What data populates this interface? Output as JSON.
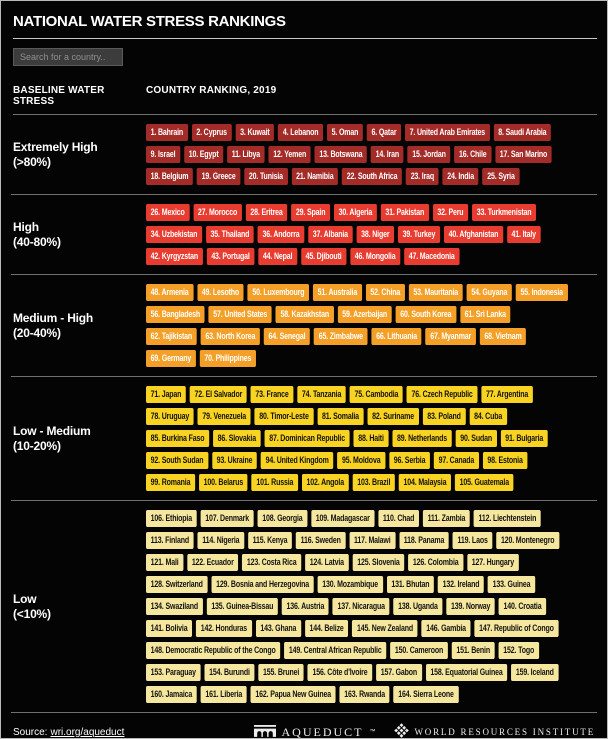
{
  "header": {
    "title": "NATIONAL WATER STRESS RANKINGS",
    "search_placeholder": "Search for a country.."
  },
  "footer": {
    "source_prefix": "Source:",
    "source_link": "wri.org/aqueduct",
    "aqueduct_label": "AQUEDUCT",
    "aqueduct_tm": "™",
    "wri_label": "WORLD RESOURCES INSTITUTE"
  },
  "chart_data": {
    "type": "table",
    "title": "National Water Stress Rankings",
    "columns": [
      "BASELINE WATER STRESS",
      "COUNTRY RANKING, 2019"
    ],
    "year": "2019",
    "groups": [
      {
        "id": "extremely-high",
        "label": "Extremely High",
        "range": "(>80%)",
        "badge_color": "#A32C28",
        "text_color": "#FFFFFF",
        "rows": [
          [
            "1. Bahrain",
            "2. Cyprus",
            "3. Kuwait",
            "4. Lebanon",
            "5. Oman",
            "6. Qatar",
            "7. United Arab Emirates",
            "8. Saudi Arabia"
          ],
          [
            "9. Israel",
            "10. Egypt",
            "11. Libya",
            "12. Yemen",
            "13. Botswana",
            "14. Iran",
            "15. Jordan",
            "16. Chile",
            "17. San Marino"
          ],
          [
            "18. Belgium",
            "19. Greece",
            "20. Tunisia",
            "21. Namibia",
            "22. South Africa",
            "23. Iraq",
            "24. India",
            "25. Syria"
          ]
        ]
      },
      {
        "id": "high",
        "label": "High",
        "range": "(40-80%)",
        "badge_color": "#E83C30",
        "text_color": "#FFFFFF",
        "rows": [
          [
            "26. Mexico",
            "27. Morocco",
            "28. Eritrea",
            "29. Spain",
            "30. Algeria",
            "31. Pakistan",
            "32. Peru",
            "33. Turkmenistan"
          ],
          [
            "34. Uzbekistan",
            "35. Thailand",
            "36. Andorra",
            "37. Albania",
            "38. Niger",
            "39. Turkey",
            "40. Afghanistan",
            "41. Italy"
          ],
          [
            "42. Kyrgyzstan",
            "43. Portugal",
            "44. Nepal",
            "45. Djibouti",
            "46. Mongolia",
            "47. Macedonia"
          ]
        ]
      },
      {
        "id": "medium-high",
        "label": "Medium - High",
        "range": "(20-40%)",
        "badge_color": "#F4A028",
        "text_color": "#FFFFFF",
        "rows": [
          [
            "48. Armenia",
            "49. Lesotho",
            "50. Luxembourg",
            "51. Australia",
            "52. China",
            "53. Mauritania",
            "54. Guyana",
            "55. Indonesia"
          ],
          [
            "56. Bangladesh",
            "57. United States",
            "58. Kazakhstan",
            "59. Azerbaijan",
            "60. South Korea",
            "61. Sri Lanka"
          ],
          [
            "62. Tajikistan",
            "63. North Korea",
            "64. Senegal",
            "65. Zimbabwe",
            "66. Lithuania",
            "67. Myanmar",
            "68. Vietnam"
          ],
          [
            "69. Germany",
            "70. Philippines"
          ]
        ]
      },
      {
        "id": "low-medium",
        "label": "Low - Medium",
        "range": "(10-20%)",
        "badge_color": "#F9D322",
        "text_color": "#121212",
        "rows": [
          [
            "71. Japan",
            "72. El Salvador",
            "73. France",
            "74. Tanzania",
            "75. Cambodia",
            "76. Czech Republic",
            "77. Argentina"
          ],
          [
            "78. Uruguay",
            "79. Venezuela",
            "80. Timor-Leste",
            "81. Somalia",
            "82. Suriname",
            "83. Poland",
            "84. Cuba"
          ],
          [
            "85. Burkina Faso",
            "86. Slovakia",
            "87. Dominican Republic",
            "88. Haiti",
            "89. Netherlands",
            "90. Sudan",
            "91. Bulgaria"
          ],
          [
            "92. South Sudan",
            "93. Ukraine",
            "94. United Kingdom",
            "95. Moldova",
            "96. Serbia",
            "97. Canada",
            "98. Estonia"
          ],
          [
            "99. Romania",
            "100. Belarus",
            "101. Russia",
            "102. Angola",
            "103. Brazil",
            "104. Malaysia",
            "105. Guatemala"
          ]
        ]
      },
      {
        "id": "low",
        "label": "Low",
        "range": "(<10%)",
        "badge_color": "#F6E79F",
        "text_color": "#121212",
        "rows": [
          [
            "106. Ethiopia",
            "107. Denmark",
            "108. Georgia",
            "109. Madagascar",
            "110. Chad",
            "111. Zambia",
            "112. Liechtenstein"
          ],
          [
            "113. Finland",
            "114. Nigeria",
            "115. Kenya",
            "116. Sweden",
            "117. Malawi",
            "118. Panama",
            "119. Laos",
            "120. Montenegro"
          ],
          [
            "121. Mali",
            "122. Ecuador",
            "123. Costa Rica",
            "124. Latvia",
            "125. Slovenia",
            "126. Colombia",
            "127. Hungary"
          ],
          [
            "128. Switzerland",
            "129. Bosnia and Herzegovina",
            "130. Mozambique",
            "131. Bhutan",
            "132. Ireland",
            "133. Guinea"
          ],
          [
            "134. Swaziland",
            "135. Guinea-Bissau",
            "136. Austria",
            "137. Nicaragua",
            "138. Uganda",
            "139. Norway",
            "140. Croatia"
          ],
          [
            "141. Bolivia",
            "142. Honduras",
            "143. Ghana",
            "144. Belize",
            "145. New Zealand",
            "146. Gambia",
            "147. Republic of Congo"
          ],
          [
            "148. Democratic Republic of the Congo",
            "149. Central African Republic",
            "150. Cameroon",
            "151. Benin",
            "152. Togo"
          ],
          [
            "153. Paraguay",
            "154. Burundi",
            "155. Brunei",
            "156. Côte d'Ivoire",
            "157. Gabon",
            "158. Equatorial Guinea",
            "159. Iceland"
          ],
          [
            "160. Jamaica",
            "161. Liberia",
            "162. Papua New Guinea",
            "163. Rwanda",
            "164. Sierra Leone"
          ]
        ]
      }
    ]
  }
}
